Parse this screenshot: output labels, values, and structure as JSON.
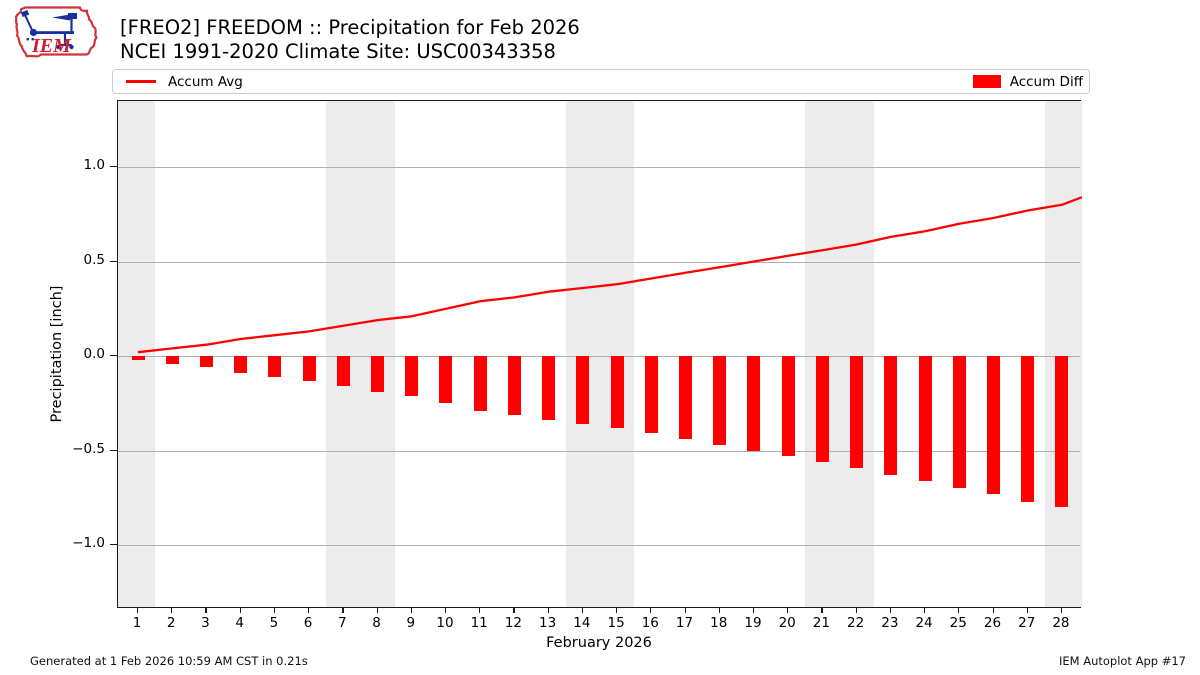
{
  "header": {
    "logo_text": "IEM",
    "title_line1": "[FREO2] FREEDOM :: Precipitation for Feb 2026",
    "title_line2": "NCEI 1991-2020 Climate Site: USC00343358"
  },
  "legend": {
    "avg_label": "Accum Avg",
    "diff_label": "Accum Diff"
  },
  "footer": {
    "generated": "Generated at 1 Feb 2026 10:59 AM CST in 0.21s",
    "app": "IEM Autoplot App #17"
  },
  "colors": {
    "series_red": "#ff0000",
    "weekend_band": "#ececec",
    "gridline": "#b0b0b0",
    "spine": "#1a1a1a",
    "logo_red": "#cf3338",
    "logo_blue": "#1b2f9e"
  },
  "chart_data": {
    "type": "line+bar",
    "title": "[FREO2] FREEDOM :: Precipitation for Feb 2026",
    "subtitle": "NCEI 1991-2020 Climate Site: USC00343358",
    "xlabel": "February 2026",
    "ylabel": "Precipitation [inch]",
    "days": [
      1,
      2,
      3,
      4,
      5,
      6,
      7,
      8,
      9,
      10,
      11,
      12,
      13,
      14,
      15,
      16,
      17,
      18,
      19,
      20,
      21,
      22,
      23,
      24,
      25,
      26,
      27,
      28
    ],
    "series": [
      {
        "name": "Accum Avg",
        "type": "line",
        "color": "#ff0000",
        "values": [
          0.02,
          0.04,
          0.06,
          0.09,
          0.11,
          0.13,
          0.16,
          0.19,
          0.21,
          0.25,
          0.29,
          0.31,
          0.34,
          0.36,
          0.38,
          0.41,
          0.44,
          0.47,
          0.5,
          0.53,
          0.56,
          0.59,
          0.63,
          0.66,
          0.7,
          0.73,
          0.77,
          0.8
        ],
        "right_edge_value": 0.84
      },
      {
        "name": "Accum Diff",
        "type": "bar",
        "color": "#ff0000",
        "values": [
          -0.02,
          -0.04,
          -0.06,
          -0.09,
          -0.11,
          -0.13,
          -0.16,
          -0.19,
          -0.21,
          -0.25,
          -0.29,
          -0.31,
          -0.34,
          -0.36,
          -0.38,
          -0.41,
          -0.44,
          -0.47,
          -0.5,
          -0.53,
          -0.56,
          -0.59,
          -0.63,
          -0.66,
          -0.7,
          -0.73,
          -0.77,
          -0.8
        ]
      }
    ],
    "yticks": [
      1.0,
      0.5,
      0.0,
      -0.5,
      -1.0
    ],
    "ytick_labels": [
      "1.0",
      "0.5",
      "0.0",
      "−0.5",
      "−1.0"
    ],
    "ylim": [
      -1.35,
      1.35
    ],
    "xtick_labels": [
      "1",
      "2",
      "3",
      "4",
      "5",
      "6",
      "7",
      "8",
      "9",
      "10",
      "11",
      "12",
      "13",
      "14",
      "15",
      "16",
      "17",
      "18",
      "19",
      "20",
      "21",
      "22",
      "23",
      "24",
      "25",
      "26",
      "27",
      "28"
    ],
    "weekend_day_ranges": [
      [
        1,
        1
      ],
      [
        7,
        8
      ],
      [
        14,
        15
      ],
      [
        21,
        22
      ],
      [
        28,
        28
      ]
    ],
    "grid": "horizontal",
    "legend_position": "top, single row, Accum Avg left / Accum Diff right"
  }
}
